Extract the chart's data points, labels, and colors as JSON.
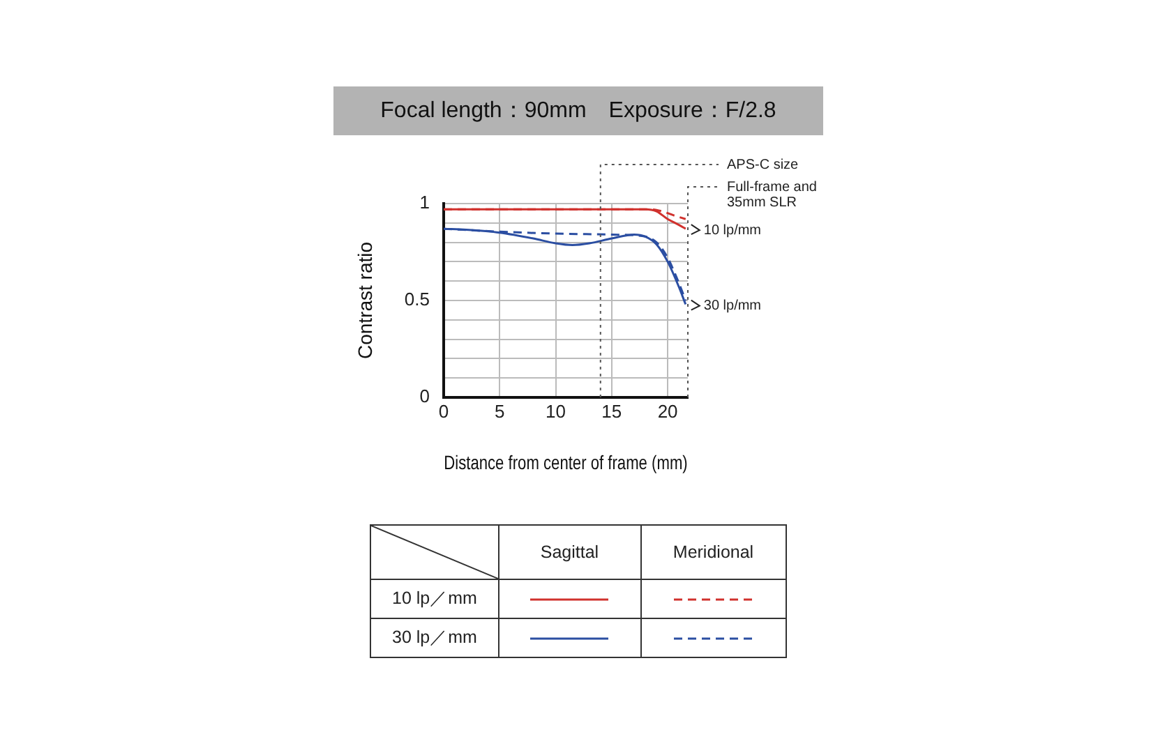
{
  "chart_data": {
    "type": "line",
    "title": "Focal length：90mm　Exposure：F/2.8",
    "xlabel": "Distance from center of frame (mm)",
    "ylabel": "Contrast ratio",
    "xlim": [
      0,
      21.8
    ],
    "xticks": [
      0,
      5,
      10,
      15,
      20
    ],
    "ylim": [
      0,
      1
    ],
    "yticks": [
      0,
      {
        "value": 0.1,
        "label": null
      },
      {
        "value": 0.2,
        "label": null
      },
      {
        "value": 0.3,
        "label": null
      },
      {
        "value": 0.4,
        "label": null
      },
      0.5,
      {
        "value": 0.6,
        "label": null
      },
      {
        "value": 0.7,
        "label": null
      },
      {
        "value": 0.8,
        "label": null
      },
      {
        "value": 0.9,
        "label": null
      },
      1
    ],
    "grid": true,
    "marker": "none",
    "series": [
      {
        "color": "#d0312d",
        "line_style": "solid",
        "x": [
          0,
          5,
          10,
          15,
          18,
          19,
          20,
          21,
          21.6
        ],
        "values": [
          0.97,
          0.97,
          0.97,
          0.97,
          0.97,
          0.96,
          0.92,
          0.89,
          0.87
        ]
      },
      {
        "color": "#d0312d",
        "line_style": "dashed",
        "x": [
          0,
          5,
          10,
          15,
          18.5,
          19.5,
          20.5,
          21.6
        ],
        "values": [
          0.97,
          0.97,
          0.97,
          0.97,
          0.97,
          0.96,
          0.94,
          0.92
        ]
      },
      {
        "color": "#2b4ea2",
        "line_style": "solid",
        "x": [
          0,
          2,
          5,
          8,
          10,
          11.5,
          13,
          15,
          17,
          18,
          19,
          20,
          21,
          21.6
        ],
        "values": [
          0.87,
          0.865,
          0.85,
          0.82,
          0.795,
          0.786,
          0.795,
          0.82,
          0.84,
          0.83,
          0.79,
          0.7,
          0.57,
          0.48
        ]
      },
      {
        "color": "#2b4ea2",
        "line_style": "dashed",
        "x": [
          0,
          5,
          10,
          15,
          18,
          19,
          20,
          21,
          21.6
        ],
        "values": [
          0.87,
          0.855,
          0.845,
          0.84,
          0.83,
          0.8,
          0.72,
          0.59,
          0.5
        ]
      }
    ],
    "ref_lines": [
      {
        "axis": "x",
        "value": 14,
        "label": "APS-C size",
        "line_style": "dotted",
        "color": "#555555"
      },
      {
        "axis": "x",
        "value": 21.8,
        "label": "Full-frame and\n35mm SLR",
        "line_style": "dotted",
        "color": "#555555"
      }
    ],
    "annotations": [
      {
        "text": "10 lp/mm",
        "x": 21.6,
        "y": 0.87
      },
      {
        "text": "30 lp/mm",
        "x": 21.6,
        "y": 0.48
      },
      "Sagittal",
      "Meridional",
      "10 lp／mm",
      "30 lp／mm"
    ]
  }
}
